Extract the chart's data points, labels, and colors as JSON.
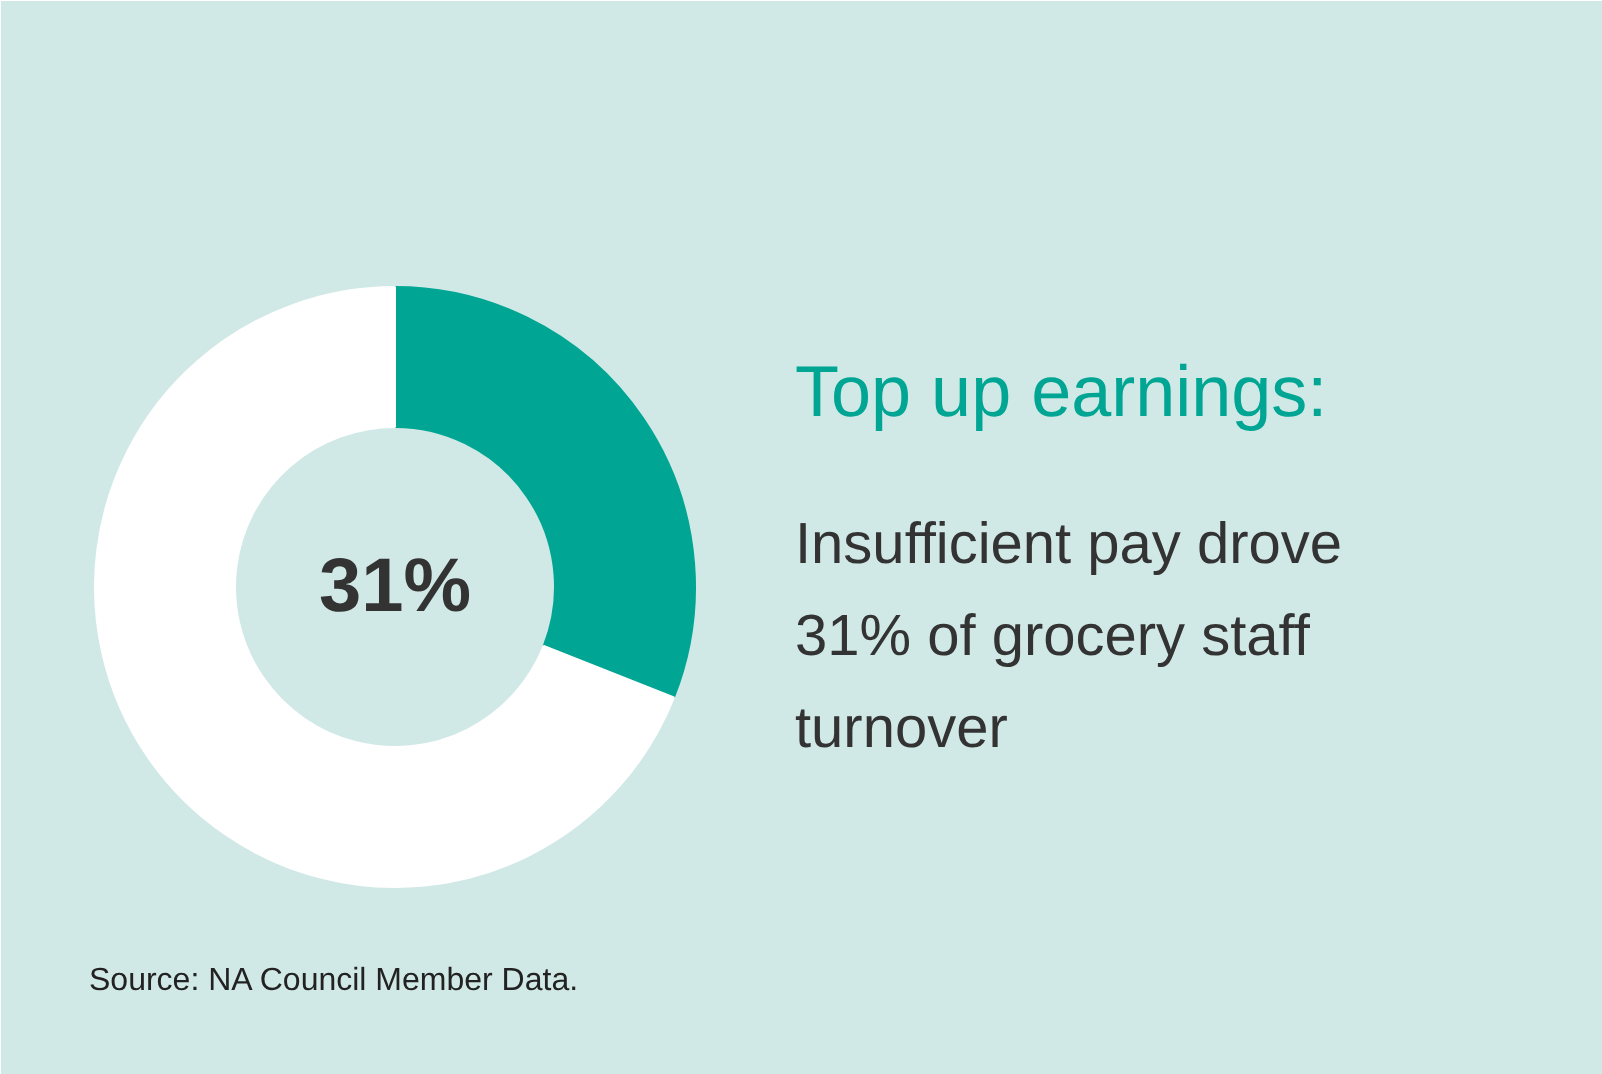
{
  "chart_data": {
    "type": "donut",
    "title": "Top up earnings:",
    "subtitle": "Insufficient pay drove 31% of grocery staff turnover",
    "categories": [
      null,
      null
    ],
    "values": [
      31,
      69
    ],
    "colors": [
      "#00a693",
      "#ffffff"
    ],
    "annotations": [
      "31%",
      "Source: NA Council Member Data."
    ]
  }
}
